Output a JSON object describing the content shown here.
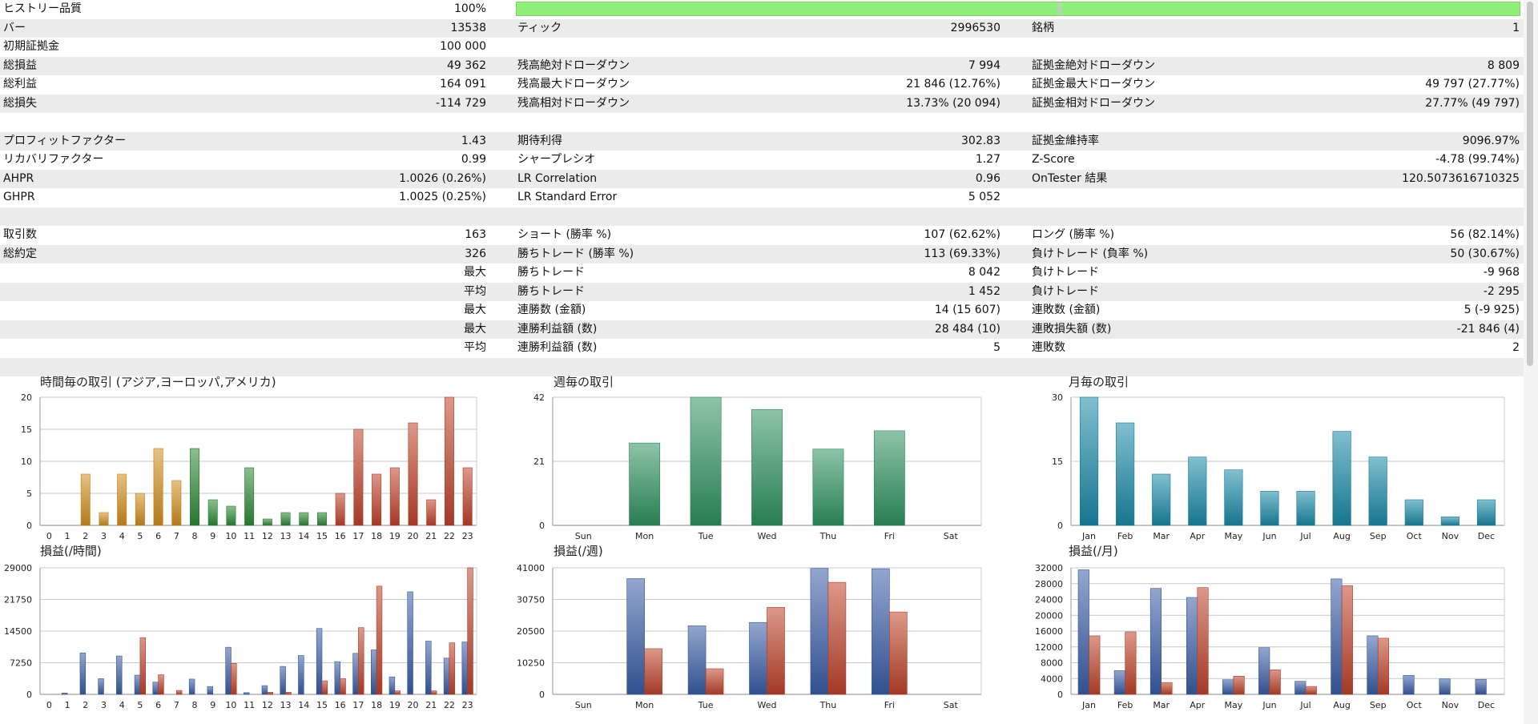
{
  "history_quality": {
    "label": "ヒストリー品質",
    "value": "100%",
    "percent": 100
  },
  "rows": [
    {
      "alt": true,
      "c1l": "バー",
      "c1r": "13538",
      "c2l": "ティック",
      "c2r": "2996530",
      "c3l": "銘柄",
      "c3r": "1"
    },
    {
      "alt": false,
      "c1l": "初期証拠金",
      "c1r": "100 000",
      "c2l": "",
      "c2r": "",
      "c3l": "",
      "c3r": ""
    },
    {
      "alt": true,
      "c1l": "総損益",
      "c1r": "49 362",
      "c2l": "残高絶対ドローダウン",
      "c2r": "7 994",
      "c3l": "証拠金絶対ドローダウン",
      "c3r": "8 809"
    },
    {
      "alt": false,
      "c1l": "総利益",
      "c1r": "164 091",
      "c2l": "残高最大ドローダウン",
      "c2r": "21 846 (12.76%)",
      "c3l": "証拠金最大ドローダウン",
      "c3r": "49 797 (27.77%)"
    },
    {
      "alt": true,
      "c1l": "総損失",
      "c1r": "-114 729",
      "c2l": "残高相対ドローダウン",
      "c2r": "13.73% (20 094)",
      "c3l": "証拠金相対ドローダウン",
      "c3r": "27.77% (49 797)"
    },
    {
      "alt": false,
      "c1l": "",
      "c1r": "",
      "c2l": "",
      "c2r": "",
      "c3l": "",
      "c3r": ""
    },
    {
      "alt": true,
      "c1l": "プロフィットファクター",
      "c1r": "1.43",
      "c2l": "期待利得",
      "c2r": "302.83",
      "c3l": "証拠金維持率",
      "c3r": "9096.97%"
    },
    {
      "alt": false,
      "c1l": "リカバリファクター",
      "c1r": "0.99",
      "c2l": "シャープレシオ",
      "c2r": "1.27",
      "c3l": "Z-Score",
      "c3r": "-4.78 (99.74%)"
    },
    {
      "alt": true,
      "c1l": "AHPR",
      "c1r": "1.0026 (0.26%)",
      "c2l": "LR Correlation",
      "c2r": "0.96",
      "c3l": "OnTester 結果",
      "c3r": "120.5073616710325"
    },
    {
      "alt": false,
      "c1l": "GHPR",
      "c1r": "1.0025 (0.25%)",
      "c2l": "LR Standard Error",
      "c2r": "5 052",
      "c3l": "",
      "c3r": ""
    },
    {
      "alt": true,
      "c1l": "",
      "c1r": "",
      "c2l": "",
      "c2r": "",
      "c3l": "",
      "c3r": ""
    },
    {
      "alt": false,
      "c1l": "取引数",
      "c1r": "163",
      "c2l": "ショート (勝率 %)",
      "c2r": "107 (62.62%)",
      "c3l": "ロング (勝率 %)",
      "c3r": "56 (82.14%)"
    },
    {
      "alt": true,
      "c1l": "総約定",
      "c1r": "326",
      "c2l": "勝ちトレード (勝率 %)",
      "c2r": "113 (69.33%)",
      "c3l": "負けトレード (負率 %)",
      "c3r": "50 (30.67%)"
    },
    {
      "alt": false,
      "c1l": "",
      "c1r": "最大",
      "c2l": "勝ちトレード",
      "c2r": "8 042",
      "c3l": "負けトレード",
      "c3r": "-9 968"
    },
    {
      "alt": true,
      "c1l": "",
      "c1r": "平均",
      "c2l": "勝ちトレード",
      "c2r": "1 452",
      "c3l": "負けトレード",
      "c3r": "-2 295"
    },
    {
      "alt": false,
      "c1l": "",
      "c1r": "最大",
      "c2l": "連勝数 (金額)",
      "c2r": "14 (15 607)",
      "c3l": "連敗数 (金額)",
      "c3r": "5 (-9 925)"
    },
    {
      "alt": true,
      "c1l": "",
      "c1r": "最大",
      "c2l": "連勝利益額 (数)",
      "c2r": "28 484 (10)",
      "c3l": "連敗損失額 (数)",
      "c3r": "-21 846 (4)"
    },
    {
      "alt": false,
      "c1l": "",
      "c1r": "平均",
      "c2l": "連勝利益額 (数)",
      "c2r": "5",
      "c3l": "連敗数",
      "c3r": "2"
    },
    {
      "alt": true,
      "c1l": "",
      "c1r": "",
      "c2l": "",
      "c2r": "",
      "c3l": "",
      "c3r": ""
    }
  ],
  "colors": {
    "quality_bar": "#8fef78",
    "asia": "#d38f1d",
    "europe": "#2e8a36",
    "america": "#c0432b",
    "weekday": "#2f9360",
    "month": "#1a8aa8",
    "profit": "#3a5ea8",
    "loss": "#c0432b"
  },
  "chart_data": [
    {
      "id": "hourly_trades",
      "type": "bar",
      "title": "時間毎の取引 (アジア,ヨーロッパ,アメリカ)",
      "categories": [
        "0",
        "1",
        "2",
        "3",
        "4",
        "5",
        "6",
        "7",
        "8",
        "9",
        "10",
        "11",
        "12",
        "13",
        "14",
        "15",
        "16",
        "17",
        "18",
        "19",
        "20",
        "21",
        "22",
        "23"
      ],
      "values": [
        0,
        0,
        8,
        2,
        8,
        5,
        12,
        7,
        12,
        4,
        3,
        9,
        1,
        2,
        2,
        2,
        5,
        15,
        8,
        9,
        16,
        4,
        20,
        9
      ],
      "bar_colors": [
        "asia",
        "asia",
        "asia",
        "asia",
        "asia",
        "asia",
        "asia",
        "asia",
        "europe",
        "europe",
        "europe",
        "europe",
        "europe",
        "europe",
        "europe",
        "europe",
        "america",
        "america",
        "america",
        "america",
        "america",
        "america",
        "america",
        "america"
      ],
      "ylim": [
        0,
        20
      ],
      "yticks": [
        "0",
        "5",
        "10",
        "15",
        "20"
      ]
    },
    {
      "id": "weekday_trades",
      "type": "bar",
      "title": "週毎の取引",
      "categories": [
        "Sun",
        "Mon",
        "Tue",
        "Wed",
        "Thu",
        "Fri",
        "Sat"
      ],
      "values": [
        0,
        27,
        42,
        38,
        25,
        31,
        0
      ],
      "color": "weekday",
      "ylim": [
        0,
        42
      ],
      "yticks": [
        "0",
        "21",
        "42"
      ]
    },
    {
      "id": "monthly_trades",
      "type": "bar",
      "title": "月毎の取引",
      "categories": [
        "Jan",
        "Feb",
        "Mar",
        "Apr",
        "May",
        "Jun",
        "Jul",
        "Aug",
        "Sep",
        "Oct",
        "Nov",
        "Dec"
      ],
      "values": [
        30,
        24,
        12,
        16,
        13,
        8,
        8,
        22,
        16,
        6,
        2,
        6
      ],
      "color": "month",
      "ylim": [
        0,
        30
      ],
      "yticks": [
        "0",
        "15",
        "30"
      ]
    },
    {
      "id": "hourly_pnl",
      "type": "bar",
      "title": "損益(/時間)",
      "categories": [
        "0",
        "1",
        "2",
        "3",
        "4",
        "5",
        "6",
        "7",
        "8",
        "9",
        "10",
        "11",
        "12",
        "13",
        "14",
        "15",
        "16",
        "17",
        "18",
        "19",
        "20",
        "21",
        "22",
        "23"
      ],
      "series": [
        {
          "color": "profit",
          "values": [
            0,
            300,
            9500,
            3600,
            8800,
            4400,
            2800,
            0,
            3500,
            1800,
            10800,
            400,
            2000,
            6400,
            8900,
            15100,
            7500,
            9400,
            10200,
            4000,
            23500,
            12200,
            8300,
            12000
          ]
        },
        {
          "color": "loss",
          "values": [
            0,
            0,
            0,
            0,
            0,
            13000,
            4500,
            900,
            0,
            0,
            7100,
            0,
            500,
            500,
            0,
            3100,
            3600,
            15300,
            24800,
            800,
            0,
            800,
            11800,
            29000
          ]
        }
      ],
      "ylim": [
        0,
        29000
      ],
      "yticks": [
        "0",
        "7250",
        "14500",
        "21750",
        "29000"
      ]
    },
    {
      "id": "weekday_pnl",
      "type": "bar",
      "title": "損益(/週)",
      "categories": [
        "Sun",
        "Mon",
        "Tue",
        "Wed",
        "Thu",
        "Fri",
        "Sat"
      ],
      "series": [
        {
          "color": "profit",
          "values": [
            0,
            37500,
            22200,
            23300,
            40800,
            40700,
            0
          ]
        },
        {
          "color": "loss",
          "values": [
            0,
            14800,
            8300,
            28200,
            36300,
            26700,
            0
          ]
        }
      ],
      "ylim": [
        0,
        41000
      ],
      "yticks": [
        "0",
        "10250",
        "20500",
        "30750",
        "41000"
      ]
    },
    {
      "id": "monthly_pnl",
      "type": "bar",
      "title": "損益(/月)",
      "categories": [
        "Jan",
        "Feb",
        "Mar",
        "Apr",
        "May",
        "Jun",
        "Jul",
        "Aug",
        "Sep",
        "Oct",
        "Nov",
        "Dec"
      ],
      "series": [
        {
          "color": "profit",
          "values": [
            31500,
            6000,
            26800,
            24500,
            3700,
            11800,
            3300,
            29200,
            14800,
            4800,
            3900,
            3800
          ]
        },
        {
          "color": "loss",
          "values": [
            14800,
            15800,
            3000,
            27000,
            4600,
            6200,
            2000,
            27500,
            14200,
            0,
            0,
            0
          ]
        }
      ],
      "ylim": [
        0,
        32000
      ],
      "yticks": [
        "0",
        "4000",
        "8000",
        "12000",
        "16000",
        "20000",
        "24000",
        "28000",
        "32000"
      ]
    }
  ]
}
